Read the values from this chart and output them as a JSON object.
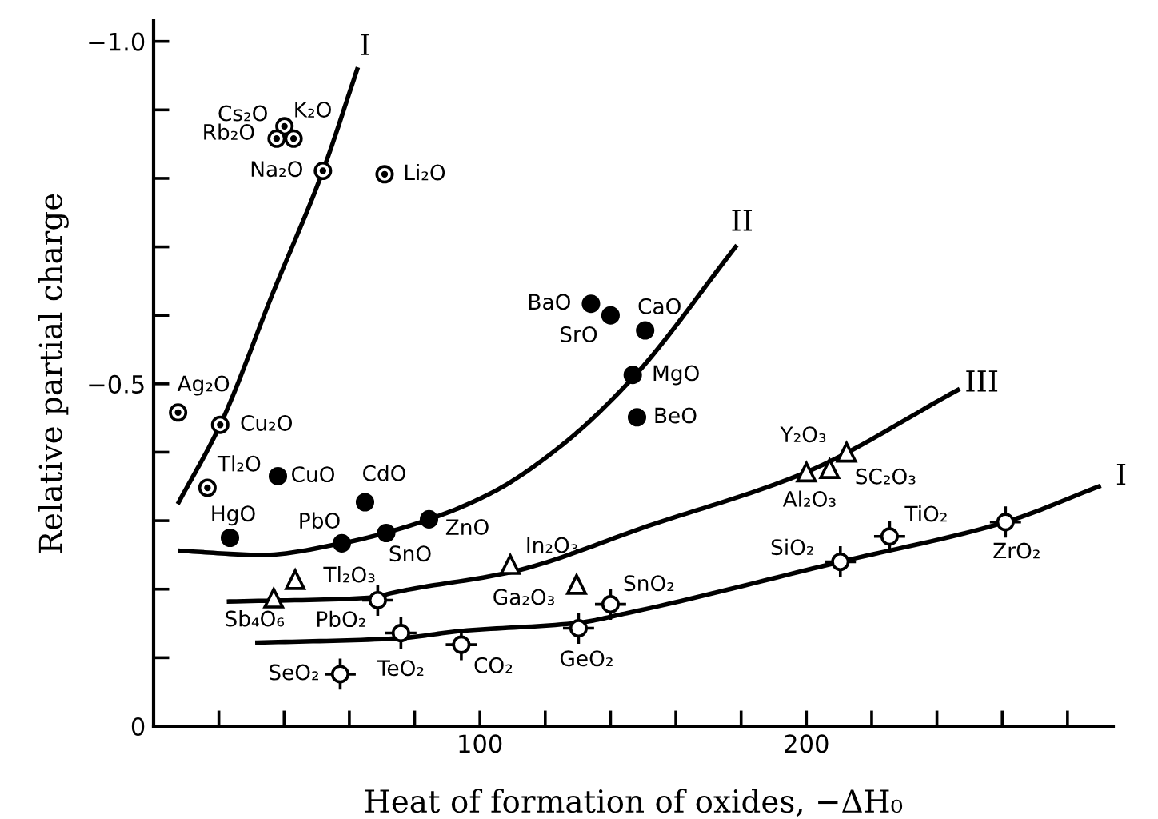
{
  "chart_data": {
    "type": "scatter",
    "xlabel": "Heat of formation of oxides, −ΔH₀",
    "ylabel": "Relative partial charge",
    "xlim": [
      0,
      294
    ],
    "ylim": [
      0,
      -1.03
    ],
    "xticks": [
      {
        "value": 20,
        "label": null
      },
      {
        "value": 40,
        "label": null
      },
      {
        "value": 60,
        "label": null
      },
      {
        "value": 80,
        "label": null
      },
      100,
      {
        "value": 120,
        "label": null
      },
      {
        "value": 140,
        "label": null
      },
      {
        "value": 160,
        "label": null
      },
      {
        "value": 180,
        "label": null
      },
      200,
      {
        "value": 220,
        "label": null
      },
      {
        "value": 240,
        "label": null
      },
      {
        "value": 260,
        "label": null
      },
      {
        "value": 280,
        "label": null
      }
    ],
    "yticks": [
      0,
      {
        "value": -0.1,
        "label": null
      },
      {
        "value": -0.2,
        "label": null
      },
      {
        "value": -0.3,
        "label": null
      },
      {
        "value": -0.4,
        "label": null
      },
      {
        "value": -0.5,
        "label": "−0.5"
      },
      {
        "value": -0.6,
        "label": null
      },
      {
        "value": -0.7,
        "label": null
      },
      {
        "value": -0.8,
        "label": null
      },
      {
        "value": -0.9,
        "label": null
      },
      {
        "value": -1.0,
        "label": "−1.0"
      }
    ],
    "grid": false,
    "legend": false,
    "series": [
      {
        "marker": "circle",
        "color": "#000000",
        "x": [
          40.1,
          37.7,
          42.9,
          51.9,
          70.8,
          7.5,
          20.4,
          16.5
        ],
        "values": [
          -0.876,
          -0.858,
          -0.858,
          -0.811,
          -0.806,
          -0.458,
          -0.44,
          -0.348
        ]
      },
      {
        "marker": "circle",
        "color": "#000000",
        "x": [
          38.1,
          64.8,
          23.4,
          57.7,
          71.3,
          84.4,
          134.0,
          140.0,
          150.6,
          146.8,
          148.1
        ],
        "values": [
          -0.365,
          -0.327,
          -0.275,
          -0.267,
          -0.282,
          -0.302,
          -0.617,
          -0.6,
          -0.578,
          -0.513,
          -0.451
        ]
      },
      {
        "marker": "triangle",
        "color": "#000000",
        "x": [
          43.4,
          36.8,
          109.3,
          129.6,
          200,
          207.1,
          212.3
        ],
        "values": [
          -0.214,
          -0.187,
          -0.236,
          -0.207,
          -0.371,
          -0.376,
          -0.4
        ]
      },
      {
        "marker": "cross",
        "color": "#000000",
        "x": [
          68.7,
          75.8,
          57.2,
          94.3,
          130.2,
          140.0,
          210.4,
          225.5,
          261
        ],
        "values": [
          -0.184,
          -0.136,
          -0.076,
          -0.119,
          -0.143,
          -0.178,
          -0.24,
          -0.277,
          -0.298
        ]
      },
      {
        "type": "line",
        "color": "#000000",
        "line_style": "solid",
        "x": [
          7.7,
          20.4,
          36.5,
          51.9,
          62.4
        ],
        "values": [
          -0.327,
          -0.44,
          -0.632,
          -0.811,
          -0.959
        ]
      },
      {
        "type": "line",
        "color": "#000000",
        "line_style": "solid",
        "x": [
          8.2,
          33.3,
          57.7,
          84.4,
          104.1,
          124.5,
          146.5,
          178.3
        ],
        "values": [
          -0.256,
          -0.25,
          -0.267,
          -0.302,
          -0.342,
          -0.408,
          -0.507,
          -0.7
        ]
      },
      {
        "type": "line",
        "color": "#000000",
        "line_style": "solid",
        "x": [
          23.1,
          67.9,
          72.6,
          110.4,
          151.3,
          200,
          246.4
        ],
        "values": [
          -0.182,
          -0.188,
          -0.194,
          -0.226,
          -0.292,
          -0.371,
          -0.491
        ]
      },
      {
        "type": "line",
        "color": "#000000",
        "line_style": "solid",
        "x": [
          31.8,
          74.2,
          94.3,
          130.2,
          145,
          210.4,
          261,
          289.6
        ],
        "values": [
          -0.122,
          -0.128,
          -0.139,
          -0.151,
          -0.165,
          -0.24,
          -0.298,
          -0.35
        ]
      }
    ],
    "annotations": [
      {
        "text": "Cs₂O",
        "x": 40.1,
        "y": -0.876
      },
      {
        "text": "Rb₂O",
        "x": 37.7,
        "y": -0.858
      },
      {
        "text": "K₂O",
        "x": 42.9,
        "y": -0.858
      },
      {
        "text": "Na₂O",
        "x": 51.9,
        "y": -0.811
      },
      {
        "text": "Li₂O",
        "x": 70.8,
        "y": -0.806
      },
      {
        "text": "Ag₂O",
        "x": 7.5,
        "y": -0.458
      },
      {
        "text": "Cu₂O",
        "x": 20.4,
        "y": -0.44
      },
      {
        "text": "Tl₂O",
        "x": 16.5,
        "y": -0.348
      },
      {
        "text": "CuO",
        "x": 38.1,
        "y": -0.365
      },
      {
        "text": "CdO",
        "x": 64.8,
        "y": -0.327
      },
      {
        "text": "HgO",
        "x": 23.4,
        "y": -0.275
      },
      {
        "text": "PbO",
        "x": 57.7,
        "y": -0.267
      },
      {
        "text": "SnO",
        "x": 71.3,
        "y": -0.282
      },
      {
        "text": "ZnO",
        "x": 84.4,
        "y": -0.302
      },
      {
        "text": "BaO",
        "x": 134.0,
        "y": -0.617
      },
      {
        "text": "SrO",
        "x": 140.0,
        "y": -0.6
      },
      {
        "text": "CaO",
        "x": 150.6,
        "y": -0.578
      },
      {
        "text": "MgO",
        "x": 146.8,
        "y": -0.513
      },
      {
        "text": "BeO",
        "x": 148.1,
        "y": -0.451
      },
      {
        "text": "Tl₂O₃",
        "x": 43.4,
        "y": -0.214
      },
      {
        "text": "Sb₄O₆",
        "x": 36.8,
        "y": -0.187
      },
      {
        "text": "In₂O₃",
        "x": 109.3,
        "y": -0.236
      },
      {
        "text": "Ga₂O₃",
        "x": 129.6,
        "y": -0.207
      },
      {
        "text": "Al₂O₃",
        "x": 200,
        "y": -0.371
      },
      {
        "text": "SC₂O₃",
        "x": 207.1,
        "y": -0.376
      },
      {
        "text": "Y₂O₃",
        "x": 212.3,
        "y": -0.4
      },
      {
        "text": "PbO₂",
        "x": 68.7,
        "y": -0.184
      },
      {
        "text": "TeO₂",
        "x": 75.8,
        "y": -0.136
      },
      {
        "text": "SeO₂",
        "x": 57.2,
        "y": -0.076
      },
      {
        "text": "CO₂",
        "x": 94.3,
        "y": -0.119
      },
      {
        "text": "GeO₂",
        "x": 130.2,
        "y": -0.143
      },
      {
        "text": "SnO₂",
        "x": 140.0,
        "y": -0.178
      },
      {
        "text": "SiO₂",
        "x": 210.4,
        "y": -0.24
      },
      {
        "text": "TiO₂",
        "x": 225.5,
        "y": -0.277
      },
      {
        "text": "ZrO₂",
        "x": 261,
        "y": -0.298
      },
      {
        "text": "I",
        "x": 62.4,
        "y": -0.959
      },
      {
        "text": "II",
        "x": 178.3,
        "y": -0.7
      },
      {
        "text": "III",
        "x": 246.4,
        "y": -0.491
      },
      {
        "text": "I",
        "x": 289.6,
        "y": -0.35
      }
    ]
  }
}
